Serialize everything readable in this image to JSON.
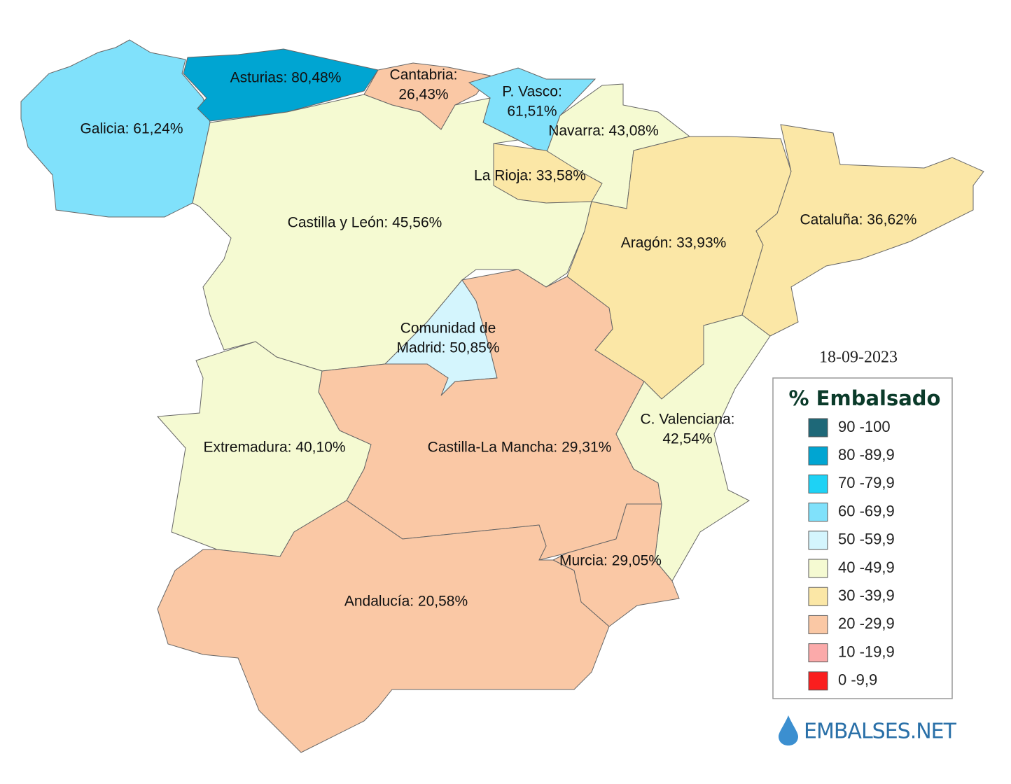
{
  "date": "18-09-2023",
  "regions": [
    {
      "label": [
        "Galicia: 61,24%"
      ],
      "color": "#80e1fb"
    },
    {
      "label": [
        "Asturias: 80,48%"
      ],
      "color": "#00a5d2"
    },
    {
      "label": [
        "Cantabria:",
        "26,43%"
      ],
      "color": "#fac8a5"
    },
    {
      "label": [
        "P. Vasco:",
        "61,51%"
      ],
      "color": "#80e1fb"
    },
    {
      "label": [
        "Navarra: 43,08%"
      ],
      "color": "#f5fad2"
    },
    {
      "label": [
        "La Rioja: 33,58%"
      ],
      "color": "#fbe7a6"
    },
    {
      "label": [
        "Castilla y León: 45,56%"
      ],
      "color": "#f5fad2"
    },
    {
      "label": [
        "Aragón: 33,93%"
      ],
      "color": "#fbe7a6"
    },
    {
      "label": [
        "Cataluña: 36,62%"
      ],
      "color": "#fbe7a6"
    },
    {
      "label": [
        "Comunidad de",
        "Madrid: 50,85%"
      ],
      "color": "#d4f5fd"
    },
    {
      "label": [
        "Extremadura: 40,10%"
      ],
      "color": "#f5fad2"
    },
    {
      "label": [
        "Castilla-La Mancha: 29,31%"
      ],
      "color": "#fac8a5"
    },
    {
      "label": [
        "C. Valenciana:",
        "42,54%"
      ],
      "color": "#f5fad2"
    },
    {
      "label": [
        "Murcia: 29,05%"
      ],
      "color": "#fac8a5"
    },
    {
      "label": [
        "Andalucía: 20,58%"
      ],
      "color": "#fac8a5"
    }
  ],
  "legend": {
    "title": "% Embalsado",
    "items": [
      {
        "label": "90 -100",
        "color": "#1e6878"
      },
      {
        "label": "80 -89,9",
        "color": "#00a5d2"
      },
      {
        "label": "70 -79,9",
        "color": "#1ed2f5"
      },
      {
        "label": "60 -69,9",
        "color": "#80e1fb"
      },
      {
        "label": "50 -59,9",
        "color": "#d4f5fd"
      },
      {
        "label": "40 -49,9",
        "color": "#f5fad2"
      },
      {
        "label": "30 -39,9",
        "color": "#fbe7a6"
      },
      {
        "label": "20 -29,9",
        "color": "#fac8a5"
      },
      {
        "label": "10 -19,9",
        "color": "#fbaaaa"
      },
      {
        "label": "0 -9,9",
        "color": "#fa1e1e"
      }
    ]
  },
  "logo": "EMBALSES.NET"
}
